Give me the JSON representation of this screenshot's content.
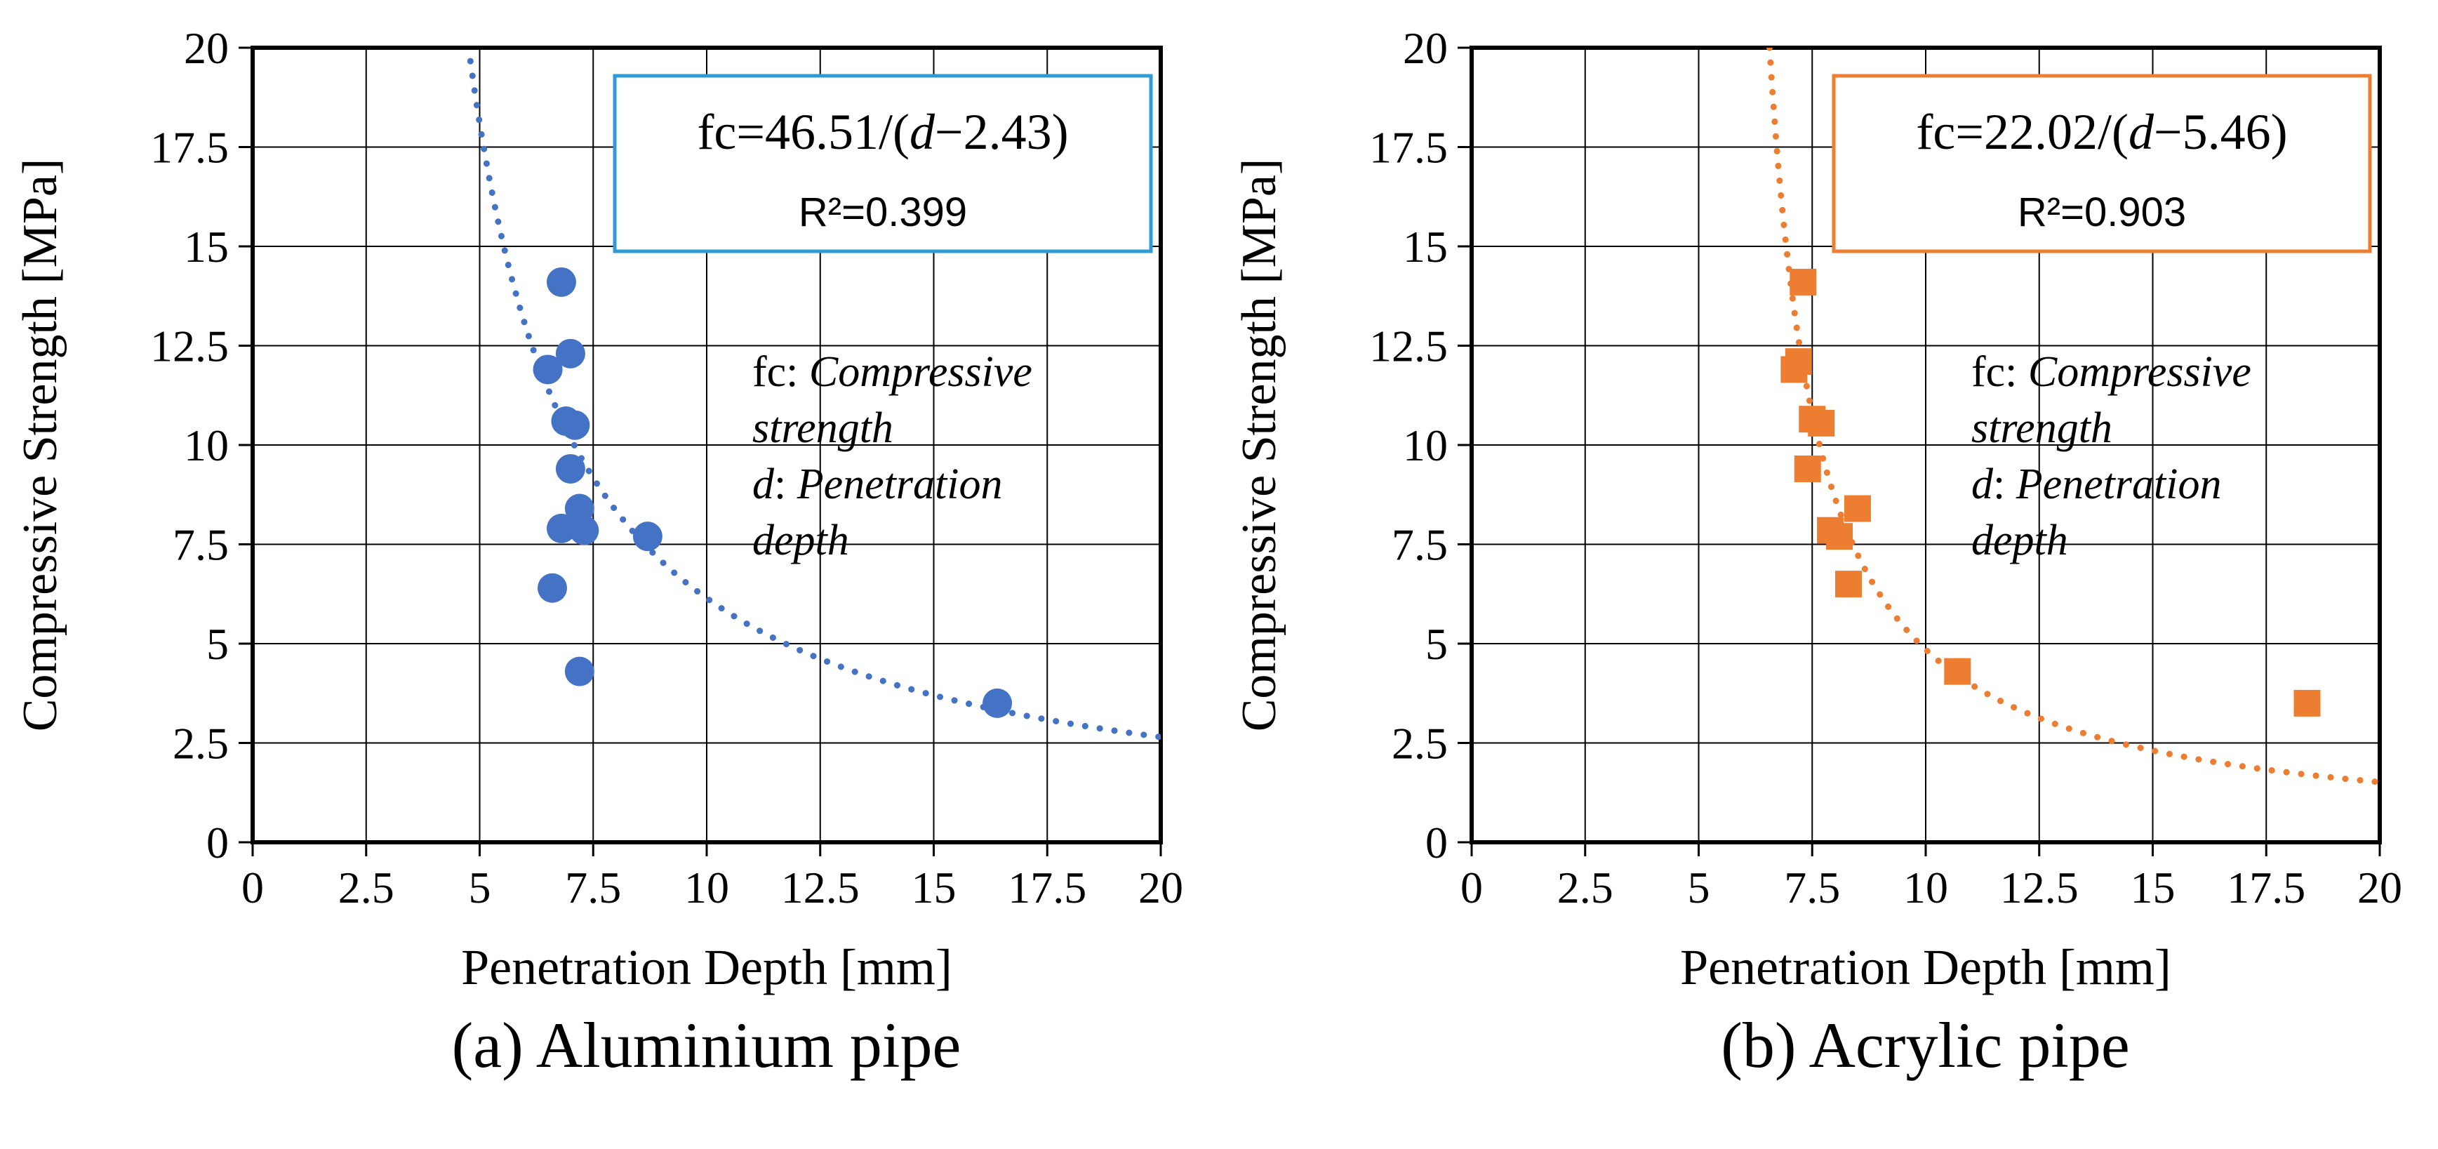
{
  "chart_data": [
    {
      "type": "scatter",
      "caption": "(a) Aluminium pipe",
      "xlabel": "Penetration Depth [mm]",
      "ylabel": "Compressive Strength [MPa]",
      "xlim": [
        0,
        20
      ],
      "ylim": [
        0,
        20
      ],
      "tick_values": [
        0,
        2.5,
        5,
        7.5,
        10,
        12.5,
        15,
        17.5,
        20
      ],
      "tick_labels": [
        "0",
        "2.5",
        "5",
        "7.5",
        "10",
        "12.5",
        "15",
        "17.5",
        "20"
      ],
      "grid": true,
      "marker": "circle",
      "marker_color": "#4472C4",
      "box_border_color": "#2E9BD6",
      "equation": {
        "parts": [
          {
            "text": "fc=46.51/(",
            "italic": false
          },
          {
            "text": "d",
            "italic": true
          },
          {
            "text": "−2.43)",
            "italic": false
          }
        ],
        "r2": "R²=0.399"
      },
      "fit": {
        "type": "inverse",
        "a": 46.51,
        "b": 2.43
      },
      "points": [
        [
          6.8,
          14.1
        ],
        [
          7.0,
          12.3
        ],
        [
          6.5,
          11.9
        ],
        [
          6.9,
          10.6
        ],
        [
          7.1,
          10.5
        ],
        [
          7.0,
          9.4
        ],
        [
          7.2,
          8.4
        ],
        [
          6.8,
          7.9
        ],
        [
          7.3,
          7.85
        ],
        [
          8.7,
          7.7
        ],
        [
          6.6,
          6.4
        ],
        [
          7.2,
          4.3
        ],
        [
          16.4,
          3.5
        ]
      ],
      "annotation_lines": [
        [
          {
            "text": "fc: ",
            "italic": false
          },
          {
            "text": "Compressive",
            "italic": true
          }
        ],
        [
          {
            "text": "strength",
            "italic": true
          }
        ],
        [
          {
            "text": "d",
            "italic": true
          },
          {
            "text": ": ",
            "italic": false
          },
          {
            "text": "Penetration",
            "italic": true
          }
        ],
        [
          {
            "text": "depth",
            "italic": true
          }
        ]
      ]
    },
    {
      "type": "scatter",
      "caption": "(b) Acrylic pipe",
      "xlabel": "Penetration Depth [mm]",
      "ylabel": "Compressive Strength [MPa]",
      "xlim": [
        0,
        20
      ],
      "ylim": [
        0,
        20
      ],
      "tick_values": [
        0,
        2.5,
        5,
        7.5,
        10,
        12.5,
        15,
        17.5,
        20
      ],
      "tick_labels": [
        "0",
        "2.5",
        "5",
        "7.5",
        "10",
        "12.5",
        "15",
        "17.5",
        "20"
      ],
      "grid": true,
      "marker": "square",
      "marker_color": "#ED7D31",
      "box_border_color": "#ED7D31",
      "equation": {
        "parts": [
          {
            "text": "fc=22.02/(",
            "italic": false
          },
          {
            "text": "d",
            "italic": true
          },
          {
            "text": "−5.46)",
            "italic": false
          }
        ],
        "r2": "R²=0.903"
      },
      "fit": {
        "type": "inverse",
        "a": 22.02,
        "b": 5.46
      },
      "points": [
        [
          7.3,
          14.1
        ],
        [
          7.2,
          12.1
        ],
        [
          7.1,
          11.9
        ],
        [
          7.5,
          10.65
        ],
        [
          7.7,
          10.55
        ],
        [
          7.4,
          9.4
        ],
        [
          8.5,
          8.4
        ],
        [
          7.9,
          7.85
        ],
        [
          8.1,
          7.7
        ],
        [
          8.3,
          6.5
        ],
        [
          10.7,
          4.3
        ],
        [
          18.4,
          3.5
        ]
      ],
      "annotation_lines": [
        [
          {
            "text": "fc: ",
            "italic": false
          },
          {
            "text": "Compressive",
            "italic": true
          }
        ],
        [
          {
            "text": "strength",
            "italic": true
          }
        ],
        [
          {
            "text": "d",
            "italic": true
          },
          {
            "text": ": ",
            "italic": false
          },
          {
            "text": "Penetration",
            "italic": true
          }
        ],
        [
          {
            "text": "depth",
            "italic": true
          }
        ]
      ]
    }
  ]
}
